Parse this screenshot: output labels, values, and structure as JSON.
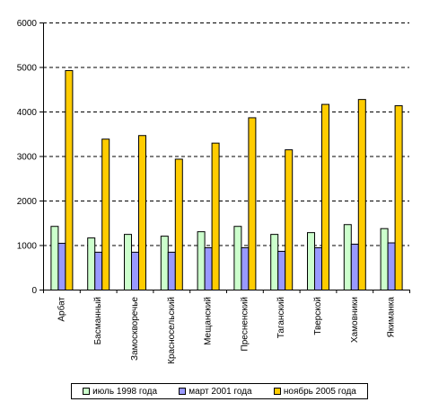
{
  "chart_data": {
    "type": "bar",
    "categories": [
      "Арбат",
      "Басманный",
      "Замоскворечье",
      "Красносельский",
      "Мещанский",
      "Пресненский",
      "Таганский",
      "Тверской",
      "Хамовники",
      "Якиманка"
    ],
    "series": [
      {
        "name": "июль 1998 года",
        "color": "#ccffcc",
        "values": [
          1430,
          1170,
          1250,
          1210,
          1310,
          1430,
          1250,
          1290,
          1470,
          1380
        ]
      },
      {
        "name": "март 2001 года",
        "color": "#9999ff",
        "values": [
          1050,
          850,
          850,
          850,
          950,
          950,
          870,
          950,
          1030,
          1060
        ]
      },
      {
        "name": "ноябрь 2005 года",
        "color": "#ffcc00",
        "values": [
          4930,
          3390,
          3470,
          2940,
          3300,
          3870,
          3150,
          4170,
          4280,
          4140
        ]
      }
    ],
    "yticks": [
      "0",
      "1000",
      "2000",
      "3000",
      "4000",
      "5000",
      "6000"
    ],
    "ylim": [
      0,
      6000
    ],
    "grid": true,
    "grid_style": "dashed",
    "legend_position": "bottom"
  }
}
